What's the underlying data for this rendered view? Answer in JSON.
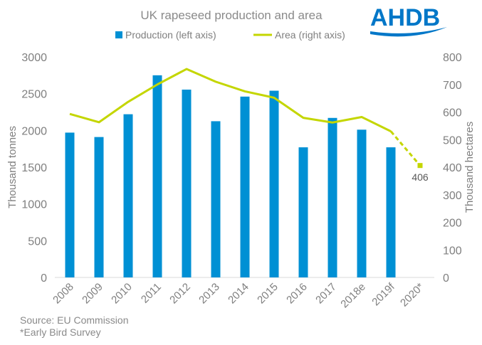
{
  "chart_data": {
    "type": "bar+line",
    "title": "UK rapeseed production and area",
    "categories": [
      "2008",
      "2009",
      "2010",
      "2011",
      "2012",
      "2013",
      "2014",
      "2015",
      "2016",
      "2017",
      "2018e",
      "2019f",
      "2020*"
    ],
    "series": [
      {
        "name": "Production (left axis)",
        "type": "bar",
        "axis": "left",
        "color": "#0090d4",
        "values": [
          1970,
          1910,
          2220,
          2750,
          2555,
          2125,
          2460,
          2540,
          1770,
          2170,
          2010,
          1770,
          null
        ]
      },
      {
        "name": "Area (right axis)",
        "type": "line",
        "axis": "right",
        "color": "#c4d600",
        "values": [
          593,
          563,
          637,
          700,
          756,
          710,
          675,
          652,
          579,
          562,
          582,
          530,
          406
        ],
        "dashed_last_segment": true
      }
    ],
    "annotation": "406",
    "ylabel_left": "Thousand tonnes",
    "ylabel_right": "Thousand  hectares",
    "ylim_left": [
      0,
      3000
    ],
    "ylim_right": [
      0,
      800
    ],
    "yticks_left": [
      "0",
      "500",
      "1000",
      "1500",
      "2000",
      "2500",
      "3000"
    ],
    "yticks_right": [
      "0",
      "100",
      "200",
      "300",
      "400",
      "500",
      "600",
      "700",
      "800"
    ],
    "legend_position": "top",
    "grid": false
  },
  "logo": "AHDB",
  "footnotes": [
    "Source: EU Commission",
    "*Early Bird Survey"
  ]
}
